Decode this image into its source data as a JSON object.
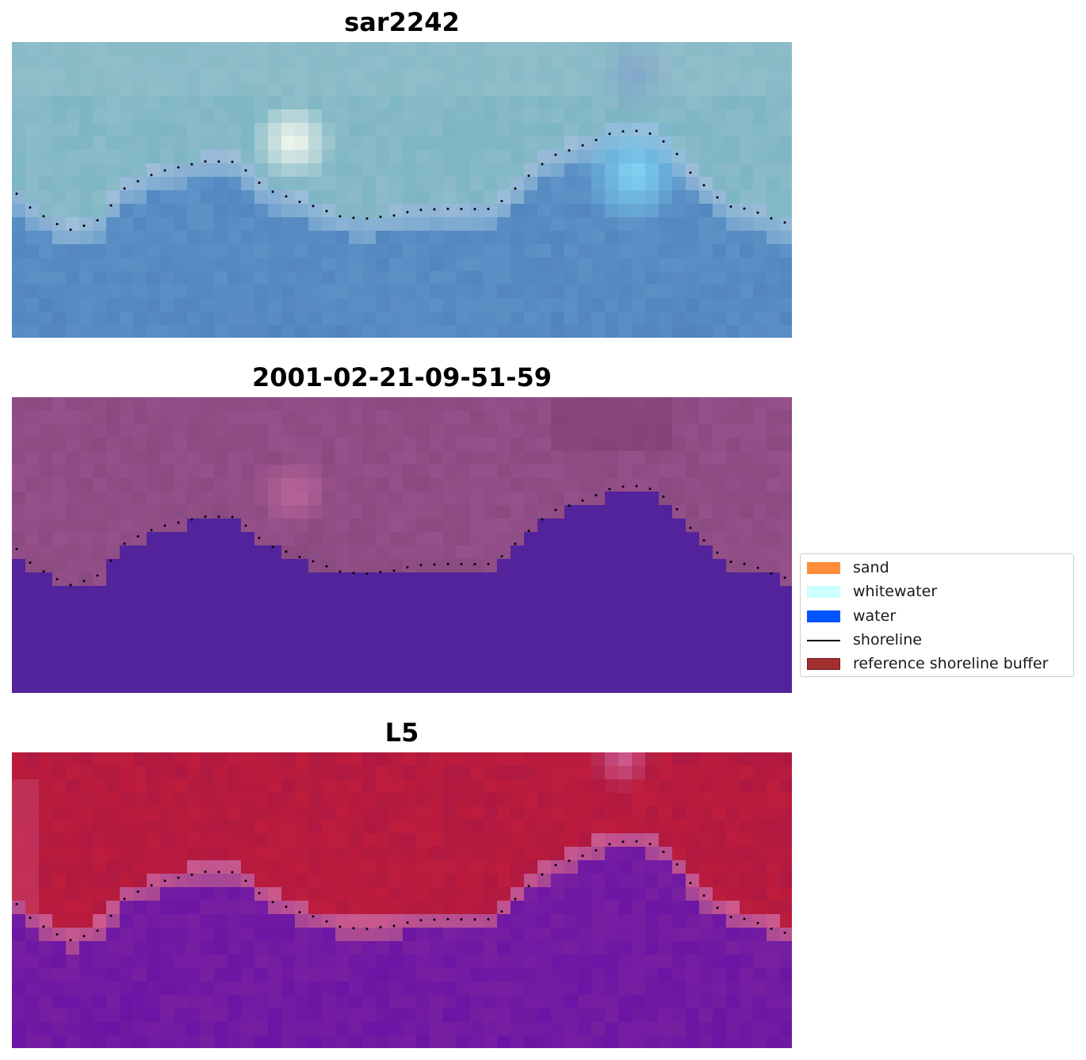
{
  "panels": [
    {
      "title": "sar2242",
      "image": "rgb-satellite-tile"
    },
    {
      "title": "2001-02-21-09-51-59",
      "image": "classified-overlay-tile"
    },
    {
      "title": "L5",
      "image": "index-colormap-tile"
    }
  ],
  "legend": {
    "items": [
      {
        "label": "sand",
        "color": "#ff8c3a",
        "kind": "patch"
      },
      {
        "label": "whitewater",
        "color": "#ccffff",
        "kind": "patch"
      },
      {
        "label": "water",
        "color": "#0055ff",
        "kind": "patch"
      },
      {
        "label": "shoreline",
        "color": "#000000",
        "kind": "line"
      },
      {
        "label": "reference shoreline buffer",
        "color": "#a0302e",
        "kind": "patch"
      }
    ]
  },
  "colors": {
    "rgb_water": "#5b8fc6",
    "rgb_land": "#86b9c5",
    "class_water": "#52239a",
    "class_land": "#8a4a80",
    "index_water": "#7a23a0",
    "index_land": "#be1c3c",
    "shoreline_dots": "#000000"
  }
}
